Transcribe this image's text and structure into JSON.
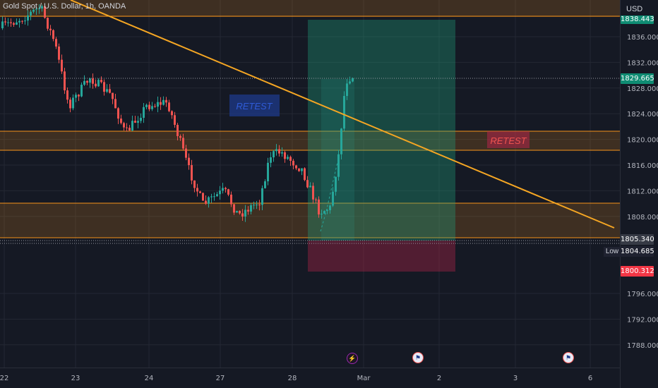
{
  "header": {
    "symbol": "Gold Spot / U.S. Dollar, 1h, OANDA",
    "currency": "USD"
  },
  "price_axis": {
    "ticks": [
      "1836.000",
      "1832.000",
      "1828.000",
      "1824.000",
      "1820.000",
      "1816.000",
      "1812.000",
      "1808.000",
      "1796.000",
      "1792.000",
      "1788.000"
    ],
    "tick_values": [
      1836,
      1832,
      1828,
      1824,
      1820,
      1816,
      1812,
      1808,
      1796,
      1792,
      1788
    ],
    "tags": {
      "top_level": "1838.443",
      "current": "1829.665",
      "entry": "1805.340",
      "low": "1804.685",
      "stop": "1800.312"
    },
    "low_label": "Low"
  },
  "time_axis": {
    "labels": [
      "22",
      "23",
      "24",
      "27",
      "28",
      "Mar",
      "2",
      "3",
      "6"
    ]
  },
  "annotations": {
    "retest_box_1": "RETEST",
    "retest_box_2": "RETEST"
  },
  "colors": {
    "bull": "#26a69a",
    "bear": "#ef5350",
    "trendline": "#f5a623",
    "zone": "#f7931a",
    "profit": "#1fa07b",
    "loss": "#b2244a",
    "current_tag": "#0f8c73",
    "stop_tag": "#f23645"
  },
  "events": {
    "flash_icon": "lightning-icon",
    "flag_icon": "us-flag-icon"
  }
}
